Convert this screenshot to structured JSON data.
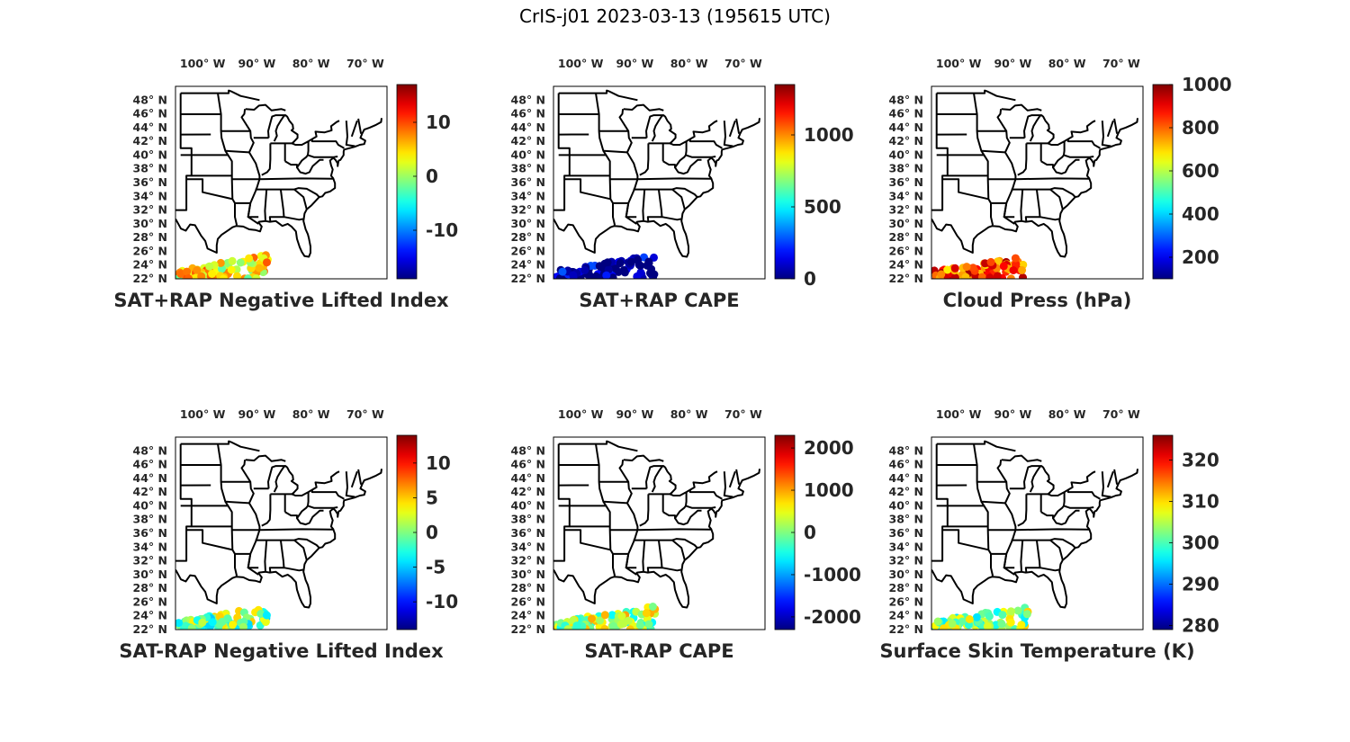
{
  "figure": {
    "title": "CrIS-j01 2023-03-13 (195615 UTC)"
  },
  "lon_labels": [
    "100° W",
    "90° W",
    "80° W",
    "70° W"
  ],
  "lat_labels": [
    "48° N",
    "46° N",
    "44° N",
    "42° N",
    "40° N",
    "38° N",
    "36° N",
    "34° N",
    "32° N",
    "30° N",
    "28° N",
    "26° N",
    "24° N",
    "22° N"
  ],
  "map_extent": {
    "lon": [
      -105,
      -66
    ],
    "lat": [
      22,
      50
    ]
  },
  "colormap": "jet",
  "panels": [
    {
      "id": "sat-rap-negative-lifted-index",
      "title": "SAT+RAP Negative Lifted Index",
      "clim": [
        -19,
        17
      ],
      "cbar_ticks": [
        {
          "value": 10,
          "label": "10"
        },
        {
          "value": 0,
          "label": "0"
        },
        {
          "value": -10,
          "label": "-10"
        }
      ],
      "swath": {
        "lon_range": [
          -104.5,
          -88
        ],
        "lat_range": [
          22,
          25.5
        ],
        "typical_value": 4
      }
    },
    {
      "id": "sat-rap-cape",
      "title": "SAT+RAP CAPE",
      "clim": [
        0,
        1350
      ],
      "cbar_ticks": [
        {
          "value": 1000,
          "label": "1000"
        },
        {
          "value": 500,
          "label": "500"
        },
        {
          "value": 0,
          "label": "0"
        }
      ],
      "swath": {
        "lon_range": [
          -104.5,
          -86
        ],
        "lat_range": [
          22,
          25.5
        ],
        "typical_value": 50
      }
    },
    {
      "id": "cloud-press",
      "title": "Cloud Press (hPa)",
      "clim": [
        100,
        1000
      ],
      "cbar_ticks": [
        {
          "value": 1000,
          "label": "1000"
        },
        {
          "value": 800,
          "label": "800"
        },
        {
          "value": 600,
          "label": "600"
        },
        {
          "value": 400,
          "label": "400"
        },
        {
          "value": 200,
          "label": "200"
        }
      ],
      "swath": {
        "lon_range": [
          -104.5,
          -88
        ],
        "lat_range": [
          22,
          25.5
        ],
        "typical_value": 820
      }
    },
    {
      "id": "sat-minus-rap-negative-lifted-index",
      "title": "SAT-RAP Negative Lifted Index",
      "clim": [
        -14,
        14
      ],
      "cbar_ticks": [
        {
          "value": 10,
          "label": "10"
        },
        {
          "value": 5,
          "label": "5"
        },
        {
          "value": 0,
          "label": "0"
        },
        {
          "value": -5,
          "label": "-5"
        },
        {
          "value": -10,
          "label": "-10"
        }
      ],
      "swath": {
        "lon_range": [
          -104.5,
          -88
        ],
        "lat_range": [
          22,
          25.5
        ],
        "typical_value": 0
      }
    },
    {
      "id": "sat-minus-rap-cape",
      "title": "SAT-RAP CAPE",
      "clim": [
        -2300,
        2300
      ],
      "cbar_ticks": [
        {
          "value": 2000,
          "label": "2000"
        },
        {
          "value": 1000,
          "label": "1000"
        },
        {
          "value": 0,
          "label": "0"
        },
        {
          "value": -1000,
          "label": "-1000"
        },
        {
          "value": -2000,
          "label": "-2000"
        }
      ],
      "swath": {
        "lon_range": [
          -104.5,
          -86
        ],
        "lat_range": [
          22,
          25.5
        ],
        "typical_value": 200
      }
    },
    {
      "id": "surface-skin-temperature",
      "title": "Surface Skin Temperature (K)",
      "clim": [
        279,
        326
      ],
      "cbar_ticks": [
        {
          "value": 320,
          "label": "320"
        },
        {
          "value": 310,
          "label": "310"
        },
        {
          "value": 300,
          "label": "300"
        },
        {
          "value": 290,
          "label": "290"
        },
        {
          "value": 280,
          "label": "280"
        }
      ],
      "swath": {
        "lon_range": [
          -104.5,
          -87
        ],
        "lat_range": [
          22,
          25.5
        ],
        "typical_value": 303
      }
    }
  ]
}
